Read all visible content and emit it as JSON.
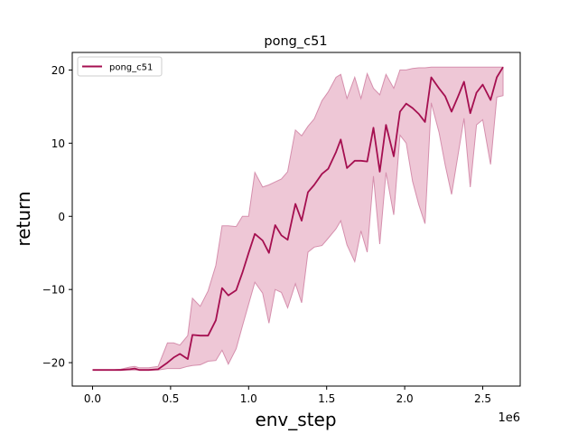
{
  "chart_data": {
    "type": "line",
    "title": "pong_c51",
    "xlabel": "env_step",
    "ylabel": "return",
    "x_offset_label": "1e6",
    "xlim": [
      -0.13,
      2.74
    ],
    "ylim": [
      -23.2,
      22.4
    ],
    "xticks": [
      0.0,
      0.5,
      1.0,
      1.5,
      2.0,
      2.5
    ],
    "xtick_labels": [
      "0.0",
      "0.5",
      "1.0",
      "1.5",
      "2.0",
      "2.5"
    ],
    "yticks": [
      -20,
      -10,
      0,
      10,
      20
    ],
    "ytick_labels": [
      "−20",
      "−10",
      "0",
      "10",
      "20"
    ],
    "legend": {
      "position": "top-left"
    },
    "colors": {
      "line": "#a50f50",
      "band": "#e8b4c8",
      "band_edge": "#d58fad"
    },
    "series": [
      {
        "name": "pong_c51",
        "x": [
          0.0,
          0.06,
          0.12,
          0.18,
          0.24,
          0.27,
          0.3,
          0.36,
          0.42,
          0.48,
          0.52,
          0.56,
          0.61,
          0.64,
          0.69,
          0.74,
          0.79,
          0.83,
          0.87,
          0.92,
          0.96,
          1.0,
          1.04,
          1.09,
          1.13,
          1.17,
          1.21,
          1.25,
          1.3,
          1.34,
          1.38,
          1.42,
          1.47,
          1.51,
          1.56,
          1.59,
          1.63,
          1.68,
          1.72,
          1.76,
          1.8,
          1.84,
          1.88,
          1.93,
          1.97,
          2.01,
          2.05,
          2.09,
          2.13,
          2.17,
          2.22,
          2.26,
          2.3,
          2.34,
          2.38,
          2.42,
          2.46,
          2.5,
          2.55,
          2.59,
          2.63
        ],
        "y": [
          -21.0,
          -21.0,
          -21.0,
          -21.0,
          -20.9,
          -20.8,
          -21.0,
          -21.0,
          -20.9,
          -20.0,
          -19.3,
          -18.8,
          -19.5,
          -16.2,
          -16.3,
          -16.3,
          -14.2,
          -9.8,
          -10.8,
          -10.1,
          -7.7,
          -5.0,
          -2.4,
          -3.3,
          -5.0,
          -1.2,
          -2.6,
          -3.2,
          1.7,
          -0.6,
          3.3,
          4.3,
          5.8,
          6.5,
          8.8,
          10.5,
          6.6,
          7.6,
          7.6,
          7.5,
          12.1,
          6.1,
          12.5,
          8.2,
          14.3,
          15.4,
          14.8,
          14.0,
          12.9,
          19.0,
          17.5,
          16.4,
          14.3,
          16.3,
          18.4,
          14.1,
          16.9,
          18.0,
          15.9,
          19.0,
          20.4
        ]
      }
    ],
    "band": {
      "upper": [
        -21.0,
        -21.0,
        -21.0,
        -20.9,
        -20.6,
        -20.5,
        -20.7,
        -20.7,
        -20.5,
        -17.3,
        -17.3,
        -17.6,
        -16.3,
        -11.2,
        -12.3,
        -10.2,
        -6.7,
        -1.3,
        -1.3,
        -1.4,
        0.0,
        0.0,
        6.0,
        4.0,
        4.3,
        4.7,
        5.1,
        6.1,
        11.8,
        11.0,
        12.3,
        13.3,
        15.8,
        17.0,
        19.0,
        19.4,
        16.1,
        19.0,
        16.1,
        19.5,
        17.5,
        16.6,
        19.4,
        17.5,
        20.0,
        20.0,
        20.2,
        20.3,
        20.3,
        20.4,
        20.4,
        20.4,
        20.4,
        20.4,
        20.4,
        20.4,
        20.4,
        20.4,
        20.4,
        20.4,
        20.4
      ],
      "lower": [
        -21.0,
        -21.0,
        -21.0,
        -21.0,
        -21.0,
        -21.0,
        -21.0,
        -21.0,
        -21.0,
        -20.8,
        -20.8,
        -20.8,
        -20.5,
        -20.4,
        -20.3,
        -19.8,
        -19.7,
        -18.3,
        -20.2,
        -18.1,
        -15.0,
        -12.0,
        -9.0,
        -10.5,
        -14.6,
        -10.0,
        -10.4,
        -12.5,
        -9.2,
        -11.8,
        -4.9,
        -4.2,
        -4.0,
        -3.0,
        -1.7,
        -0.6,
        -3.9,
        -6.2,
        -2.0,
        -4.9,
        5.5,
        -3.8,
        6.0,
        0.2,
        11.1,
        10.0,
        4.8,
        1.6,
        -1.0,
        15.5,
        11.5,
        7.0,
        3.0,
        8.2,
        13.4,
        4.0,
        12.5,
        13.2,
        7.1,
        16.3,
        16.5
      ]
    }
  }
}
